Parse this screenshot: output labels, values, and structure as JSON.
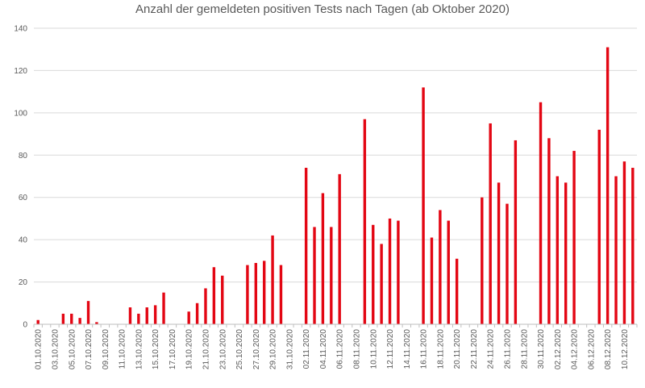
{
  "chart_data": {
    "type": "bar",
    "title": "Anzahl der gemeldeten positiven Tests nach Tagen (ab Oktober 2020)",
    "xlabel": "",
    "ylabel": "",
    "ylim": [
      0,
      140
    ],
    "yticks": [
      0,
      20,
      40,
      60,
      80,
      100,
      120,
      140
    ],
    "grid": true,
    "bar_color": "#e30613",
    "categories": [
      "01.10.2020",
      "02.10.2020",
      "03.10.2020",
      "04.10.2020",
      "05.10.2020",
      "06.10.2020",
      "07.10.2020",
      "08.10.2020",
      "09.10.2020",
      "10.10.2020",
      "11.10.2020",
      "12.10.2020",
      "13.10.2020",
      "14.10.2020",
      "15.10.2020",
      "16.10.2020",
      "17.10.2020",
      "18.10.2020",
      "19.10.2020",
      "20.10.2020",
      "21.10.2020",
      "22.10.2020",
      "23.10.2020",
      "24.10.2020",
      "25.10.2020",
      "26.10.2020",
      "27.10.2020",
      "28.10.2020",
      "29.10.2020",
      "30.10.2020",
      "31.10.2020",
      "01.11.2020",
      "02.11.2020",
      "03.11.2020",
      "04.11.2020",
      "05.11.2020",
      "06.11.2020",
      "07.11.2020",
      "08.11.2020",
      "09.11.2020",
      "10.11.2020",
      "11.11.2020",
      "12.11.2020",
      "13.11.2020",
      "14.11.2020",
      "15.11.2020",
      "16.11.2020",
      "17.11.2020",
      "18.11.2020",
      "19.11.2020",
      "20.11.2020",
      "21.11.2020",
      "22.11.2020",
      "23.11.2020",
      "24.11.2020",
      "25.11.2020",
      "26.11.2020",
      "27.11.2020",
      "28.11.2020",
      "29.11.2020",
      "30.11.2020",
      "01.12.2020",
      "02.12.2020",
      "03.12.2020",
      "04.12.2020",
      "05.12.2020",
      "06.12.2020",
      "07.12.2020",
      "08.12.2020",
      "09.12.2020",
      "10.12.2020",
      "11.12.2020"
    ],
    "values": [
      2,
      0,
      0,
      5,
      5,
      3,
      11,
      1,
      0,
      0,
      0,
      8,
      5,
      8,
      9,
      15,
      0,
      0,
      6,
      10,
      17,
      27,
      23,
      0,
      0,
      28,
      29,
      30,
      42,
      28,
      0,
      0,
      74,
      46,
      62,
      46,
      71,
      0,
      0,
      97,
      47,
      38,
      50,
      49,
      0,
      0,
      112,
      41,
      54,
      49,
      31,
      0,
      0,
      60,
      95,
      67,
      57,
      87,
      0,
      0,
      105,
      88,
      70,
      67,
      82,
      0,
      0,
      92,
      131,
      70,
      77,
      74
    ],
    "shown_labels": [
      "01.10.2020",
      "03.10.2020",
      "05.10.2020",
      "07.10.2020",
      "09.10.2020",
      "11.10.2020",
      "13.10.2020",
      "15.10.2020",
      "17.10.2020",
      "19.10.2020",
      "21.10.2020",
      "23.10.2020",
      "25.10.2020",
      "27.10.2020",
      "29.10.2020",
      "31.10.2020",
      "02.11.2020",
      "04.11.2020",
      "06.11.2020",
      "08.11.2020",
      "10.11.2020",
      "12.11.2020",
      "14.11.2020",
      "16.11.2020",
      "18.11.2020",
      "20.11.2020",
      "22.11.2020",
      "24.11.2020",
      "26.11.2020",
      "28.11.2020",
      "30.11.2020",
      "02.12.2020",
      "04.12.2020",
      "06.12.2020",
      "08.12.2020",
      "10.12.2020"
    ]
  }
}
